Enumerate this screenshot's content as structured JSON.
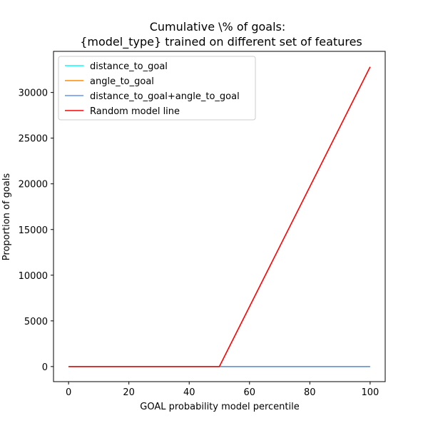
{
  "chart_data": {
    "type": "line",
    "title": [
      "Cumulative \\% of goals:",
      "{model_type} trained on different set of features"
    ],
    "xlabel": "GOAL probability model percentile",
    "ylabel": "Proportion of goals",
    "xlim": [
      -5,
      105
    ],
    "ylim": [
      -1650,
      34500
    ],
    "xticks": [
      0,
      20,
      40,
      60,
      80,
      100
    ],
    "xtick_labels": [
      "0",
      "20",
      "40",
      "60",
      "80",
      "100"
    ],
    "yticks": [
      0,
      5000,
      10000,
      15000,
      20000,
      25000,
      30000
    ],
    "ytick_labels": [
      "0",
      "5000",
      "10000",
      "15000",
      "20000",
      "25000",
      "30000"
    ],
    "grid": false,
    "legend_position": "upper-left",
    "series": [
      {
        "name": "distance_to_goal",
        "color": "#00ffff",
        "x": [
          0,
          50,
          100
        ],
        "y": [
          0,
          0,
          0
        ]
      },
      {
        "name": "angle_to_goal",
        "color": "#ff8c00",
        "x": [
          0,
          50,
          100
        ],
        "y": [
          0,
          0,
          0
        ]
      },
      {
        "name": "distance_to_goal+angle_to_goal",
        "color": "#6495ed",
        "x": [
          0,
          50,
          100
        ],
        "y": [
          0,
          0,
          0
        ]
      },
      {
        "name": "Random model line",
        "color": "#ff0000",
        "x": [
          0,
          50,
          100
        ],
        "y": [
          0,
          0,
          32800
        ]
      }
    ]
  }
}
